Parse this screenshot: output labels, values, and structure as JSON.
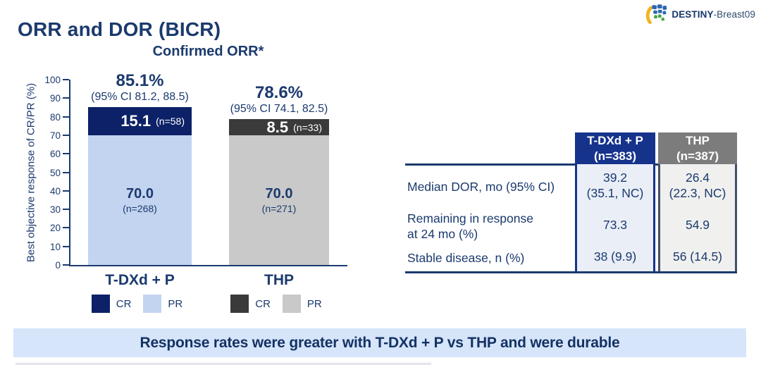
{
  "logo": {
    "brand_bold": "DESTINY",
    "brand_suffix": "-Breast09"
  },
  "page_title": "ORR and DOR (BICR)",
  "colors": {
    "navy": "#1b3a6e",
    "axis": "#1b3a6e",
    "cr_blue": "#0c2167",
    "pr_blue": "#c3d4f1",
    "cr_gray": "#3a3a3a",
    "pr_gray": "#c9c9c9",
    "header_blue": "#16338c",
    "header_gray": "#7c7c7c",
    "cell_blue_bg": "#e9eef7",
    "cell_gray_bg": "#f0f0ef",
    "tdxd_border": "#16338c",
    "thp_border": "#44506b",
    "banner_bg": "#d6e5fa"
  },
  "chart_data": {
    "type": "bar",
    "stacked": true,
    "title": "Confirmed ORR*",
    "ylabel": "Best objective response of CR/PR (%)",
    "ylim": [
      0,
      100
    ],
    "ytick_step": 10,
    "grid": false,
    "categories": [
      "T-DXd + P",
      "THP"
    ],
    "series": [
      {
        "name": "CR",
        "values": [
          15.1,
          8.5
        ],
        "counts": [
          "(n=58)",
          "(n=33)"
        ],
        "colors": [
          "#0c2167",
          "#3a3a3a"
        ]
      },
      {
        "name": "PR",
        "values": [
          70.0,
          70.0
        ],
        "counts": [
          "(n=268)",
          "(n=271)"
        ],
        "colors": [
          "#c3d4f1",
          "#c9c9c9"
        ]
      }
    ],
    "segment_labels": {
      "cr": [
        "15.1",
        "8.5"
      ],
      "pr": [
        "70.0",
        "70.0"
      ]
    },
    "totals_pct": [
      85.1,
      78.6
    ],
    "totals_label": [
      "85.1%",
      "78.6%"
    ],
    "totals_ci": [
      "(95% CI 81.2, 88.5)",
      "(95% CI 74.1, 82.5)"
    ],
    "legend": [
      {
        "group": "T-DXd + P",
        "entries": [
          {
            "label": "CR",
            "color": "#0c2167"
          },
          {
            "label": "PR",
            "color": "#c3d4f1"
          }
        ]
      },
      {
        "group": "THP",
        "entries": [
          {
            "label": "CR",
            "color": "#3a3a3a"
          },
          {
            "label": "PR",
            "color": "#c9c9c9"
          }
        ]
      }
    ]
  },
  "table": {
    "col_headers": [
      {
        "line1": "T-DXd + P",
        "line2": "(n=383)",
        "bg": "#16338c",
        "border": "#16338c",
        "body_bg": "#e9eef7"
      },
      {
        "line1": "THP",
        "line2": "(n=387)",
        "bg": "#7c7c7c",
        "border": "#44506b",
        "body_bg": "#f0f0ef"
      }
    ],
    "rows": [
      {
        "label": [
          "Median DOR, mo (95% CI)"
        ],
        "tdxd": [
          "39.2",
          "(35.1, NC)"
        ],
        "thp": [
          "26.4",
          "(22.3, NC)"
        ]
      },
      {
        "label": [
          "Remaining in response",
          "at 24 mo (%)"
        ],
        "tdxd": [
          "73.3"
        ],
        "thp": [
          "54.9"
        ]
      },
      {
        "label": [
          "Stable disease, n (%)"
        ],
        "tdxd": [
          "38 (9.9)"
        ],
        "thp": [
          "56 (14.5)"
        ]
      }
    ]
  },
  "banner": {
    "text": "Response rates were greater with T-DXd + P vs THP and were durable"
  }
}
